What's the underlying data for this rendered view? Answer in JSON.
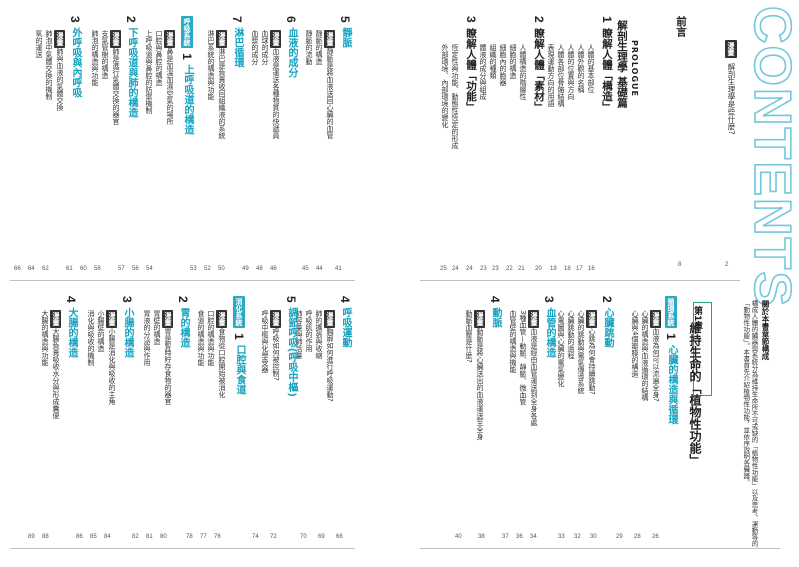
{
  "right_page": {
    "contents_word": "CONTENTS",
    "intro_item": {
      "tag": "漫畫",
      "title": "解剖生理學是些什麼?",
      "page": "2"
    },
    "preface": {
      "title": "前言",
      "page": "8"
    },
    "prologue": {
      "label": "PROLOGUE",
      "title": "解剖生理學 基礎篇",
      "sections": [
        {
          "num": "1",
          "title": "瞭解人體「構造」",
          "items": [
            "人體的基本部位",
            "人體外觀的名稱",
            "人體的位置與方向",
            "人體各部位骨骼結構",
            "表現運動方向的用語"
          ],
          "pages": [
            "16",
            "17",
            "18",
            "19",
            "20"
          ]
        },
        {
          "num": "2",
          "title": "瞭解人體「素材」",
          "items": [
            "人體構造的階層性",
            "細胞的構造",
            "細胞內的胞器",
            "組織的種類",
            "體液的成分與組成"
          ],
          "pages": [
            "21",
            "22",
            "23",
            "23",
            "24"
          ]
        },
        {
          "num": "3",
          "title": "瞭解人體「功能」",
          "items": [
            "恆定性與功能、動態性恆定的形成",
            "外部環境、內部環境的變化"
          ],
          "pages": [
            "24",
            "25"
          ]
        }
      ]
    },
    "chapter": {
      "num_label": "第1章",
      "title": "維持生命的「植物性功能」",
      "feature_label": "關於本書章節構成",
      "feature_text": "構成人體的臟器與系統分為維持生命所不可或缺的「植物性功能」以及思考、運動等的「動物性功能」。本書首先介紹植物性功能，並依序說明各臟器。",
      "intro_tag": "循環系統",
      "sections": [
        {
          "num": "1",
          "title": "心臟的構造與循環",
          "manga": "血液為何可以流遍全身?",
          "items": [
            "心臟的構造與血液循環的結構",
            "心臟與4個瓣膜的構造",
            "心臟的血管"
          ],
          "pages": [
            "26",
            "28",
            "29"
          ]
        },
        {
          "num": "2",
          "title": "心臟跳動",
          "manga": "心跳為何會持續跳動?",
          "items": [
            "心臟的跳動與電氣傳導系統",
            "心臟跳動的過程",
            "心電圖與心臟的電氣變化"
          ],
          "pages": [
            "30",
            "32",
            "33"
          ]
        },
        {
          "num": "3",
          "title": "血管的構造",
          "manga": "血液是經由血管運送到全身各處",
          "items": [
            "3種血管—動脈、靜脈、微血管",
            "血管壁的構造與機能"
          ],
          "pages": [
            "34",
            "36",
            "37"
          ]
        },
        {
          "num": "4",
          "title": "動脈",
          "manga": "動脈是將心臟送出的血液運送至全身",
          "items": [
            "動脈血壓是什麼?"
          ],
          "pages": [
            "38",
            "40"
          ]
        },
        {
          "num": "5",
          "title": "靜脈",
          "manga": "靜脈是將血液送回心臟的血管",
          "items": [
            "靜脈的構造",
            "靜脈的流動"
          ],
          "pages": [
            "41",
            "44",
            "45"
          ]
        },
        {
          "num": "6",
          "title": "血液的成分",
          "manga": "血液是運送各種物質的快遞員",
          "items": [
            "血球的成分",
            "血漿的成分"
          ],
          "pages": [
            "46",
            "48",
            "49"
          ]
        },
        {
          "num": "7",
          "title": "淋巴循環",
          "manga": "淋巴是負責收回組織液的系統",
          "items": [
            "淋巴系統的構造與功能"
          ],
          "pages": [
            "50",
            "52",
            "53"
          ]
        }
      ]
    }
  },
  "left_page": {
    "columns": [
      {
        "num": "1",
        "tag": "呼吸系統",
        "title": "上呼吸道的構造",
        "manga": "鼻是加溫加濕空氣的場所",
        "items": [
          "口腔與鼻腔的構造",
          "上呼吸道與鼻腔的防禦機制"
        ],
        "pages": [
          "54",
          "56",
          "57"
        ]
      },
      {
        "num": "2",
        "title": "下呼吸道與肺的構造",
        "manga": "肺是進行氣體交換的器官",
        "items": [
          "支氣管樹的構造",
          "肺泡的構造與功能"
        ],
        "pages": [
          "58",
          "60",
          "61"
        ]
      },
      {
        "num": "3",
        "title": "外呼吸與內呼吸",
        "manga": "肺與血液的氣體交換",
        "items": [
          "肺泡中氣體交換的機制",
          "氧的運送"
        ],
        "pages": [
          "62",
          "64",
          "66"
        ]
      },
      {
        "num": "4",
        "title": "呼吸運動",
        "manga": "胸廓如何進行呼吸運動?",
        "items": [
          "肺的擴張與收縮",
          "呼吸肌的作用",
          "肺容量與肺活量"
        ],
        "pages": [
          "68",
          "69",
          "70"
        ]
      },
      {
        "num": "5",
        "title": "調節呼吸(呼吸中樞)",
        "manga": "呼吸如何被控制?",
        "items": [
          "呼吸中樞與化學受器"
        ],
        "pages": [
          "72",
          "74"
        ]
      },
      {
        "num": "1",
        "tag": "消化系統",
        "title": "口腔與食道",
        "manga": "食物從口腔開始被消化",
        "items": [
          "口腔的構造與功能",
          "食道的構造與功能"
        ],
        "pages": [
          "76",
          "77",
          "78"
        ]
      },
      {
        "num": "2",
        "title": "胃的構造",
        "manga": "胃是暫時貯存食物的器官",
        "items": [
          "胃壁的構造",
          "胃液的分泌與作用"
        ],
        "pages": [
          "80",
          "81",
          "82"
        ]
      },
      {
        "num": "3",
        "title": "小腸的構造",
        "manga": "小腸是消化與吸收的主角",
        "items": [
          "小腸壁的構造",
          "消化與吸收的機制"
        ],
        "pages": [
          "84",
          "85",
          "86"
        ]
      },
      {
        "num": "4",
        "title": "大腸的構造",
        "manga": "大腸負責吸收水分與形成糞便",
        "items": [
          "大腸的構造與功能"
        ],
        "pages": [
          "88",
          "89"
        ]
      }
    ]
  }
}
